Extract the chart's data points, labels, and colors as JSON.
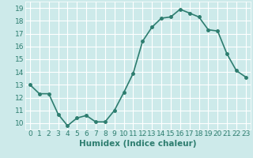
{
  "x": [
    0,
    1,
    2,
    3,
    4,
    5,
    6,
    7,
    8,
    9,
    10,
    11,
    12,
    13,
    14,
    15,
    16,
    17,
    18,
    19,
    20,
    21,
    22,
    23
  ],
  "y": [
    13,
    12.3,
    12.3,
    10.7,
    9.8,
    10.4,
    10.6,
    10.1,
    10.1,
    11.0,
    12.4,
    13.9,
    16.4,
    17.5,
    18.2,
    18.3,
    18.9,
    18.6,
    18.3,
    17.3,
    17.2,
    15.4,
    14.1,
    13.6
  ],
  "xlabel": "Humidex (Indice chaleur)",
  "ylim": [
    9.5,
    19.5
  ],
  "xlim": [
    -0.5,
    23.5
  ],
  "yticks": [
    10,
    11,
    12,
    13,
    14,
    15,
    16,
    17,
    18,
    19
  ],
  "xticks": [
    0,
    1,
    2,
    3,
    4,
    5,
    6,
    7,
    8,
    9,
    10,
    11,
    12,
    13,
    14,
    15,
    16,
    17,
    18,
    19,
    20,
    21,
    22,
    23
  ],
  "line_color": "#2d7d6f",
  "marker_color": "#2d7d6f",
  "bg_color": "#cdeaea",
  "grid_color": "#ffffff",
  "fig_bg": "#cdeaea",
  "font_color": "#2d7d6f",
  "xlabel_fontsize": 7.5,
  "tick_fontsize": 6.5,
  "line_width": 1.2,
  "marker_size": 2.5
}
